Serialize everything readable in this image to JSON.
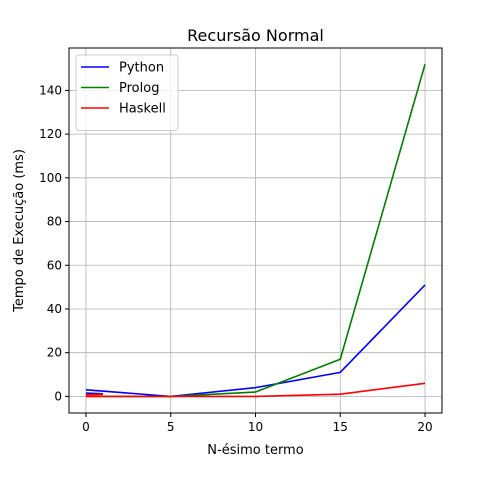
{
  "chart_data": {
    "type": "line",
    "title": "Recursão Normal",
    "xlabel": "N-ésimo termo",
    "ylabel": "Tempo de Execução (ms)",
    "xlim": [
      -1,
      21
    ],
    "ylim": [
      -7.6,
      159.4
    ],
    "xticks": [
      0,
      5,
      10,
      15,
      20
    ],
    "yticks": [
      0,
      20,
      40,
      60,
      80,
      100,
      120,
      140
    ],
    "grid": true,
    "legend_position": "upper-left",
    "x": [
      0,
      5,
      10,
      15,
      20
    ],
    "series": [
      {
        "name": "Python",
        "color": "#0000ff",
        "values": [
          3,
          0,
          4,
          11,
          51
        ]
      },
      {
        "name": "Prolog",
        "color": "#008000",
        "values": [
          0,
          0,
          2,
          17,
          152
        ]
      },
      {
        "name": "Haskell",
        "color": "#ff0000",
        "values": [
          0,
          0,
          0,
          1,
          6
        ]
      }
    ],
    "extra_segments": [
      {
        "series": "Python",
        "color": "#0000ff",
        "x": [
          0,
          1
        ],
        "y": [
          1.5,
          1.2
        ]
      },
      {
        "series": "Haskell",
        "color": "#ff0000",
        "x": [
          0,
          1
        ],
        "y": [
          0.8,
          0.9
        ]
      }
    ]
  }
}
